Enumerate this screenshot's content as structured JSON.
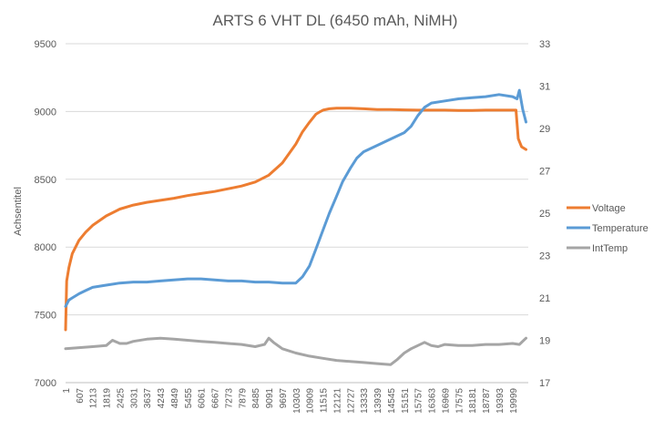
{
  "chart_data": {
    "type": "line",
    "title": "ARTS 6 VHT DL (6450 mAh, NiMH)",
    "xlabel": "",
    "ylabel": "Achsentitel",
    "y2label": "",
    "ylim": [
      7000,
      9500
    ],
    "y2lim": [
      17,
      33
    ],
    "yticks": [
      7000,
      7500,
      8000,
      8500,
      9000,
      9500
    ],
    "y2ticks": [
      17,
      19,
      21,
      23,
      25,
      27,
      29,
      31,
      33
    ],
    "x_range": [
      1,
      20700
    ],
    "x_ticks": [
      "1",
      "607",
      "1213",
      "1819",
      "2425",
      "3031",
      "3637",
      "4243",
      "4849",
      "5455",
      "6061",
      "6667",
      "7273",
      "7879",
      "8485",
      "9091",
      "9697",
      "10303",
      "10909",
      "11515",
      "12121",
      "12727",
      "13333",
      "13939",
      "14545",
      "15151",
      "15757",
      "16363",
      "16969",
      "17575",
      "18181",
      "18787",
      "19393",
      "19999"
    ],
    "x_tick_values": [
      1,
      607,
      1213,
      1819,
      2425,
      3031,
      3637,
      4243,
      4849,
      5455,
      6061,
      6667,
      7273,
      7879,
      8485,
      9091,
      9697,
      10303,
      10909,
      11515,
      12121,
      12727,
      13333,
      13939,
      14545,
      15151,
      15757,
      16363,
      16969,
      17575,
      18181,
      18787,
      19393,
      19999
    ],
    "grid": "horizontal",
    "legend_position": "right",
    "series": [
      {
        "name": "Voltage",
        "axis": "left",
        "color": "#ed7d31",
        "x": [
          1,
          50,
          150,
          300,
          600,
          900,
          1213,
          1819,
          2425,
          3031,
          3637,
          4243,
          4849,
          5455,
          6061,
          6667,
          7273,
          7879,
          8485,
          9091,
          9697,
          10000,
          10303,
          10600,
          10909,
          11200,
          11400,
          11515,
          11800,
          12121,
          12727,
          13333,
          13939,
          14545,
          15151,
          15757,
          16363,
          16969,
          17575,
          18181,
          18787,
          19393,
          19999,
          20150,
          20250,
          20400,
          20600
        ],
        "y": [
          7390,
          7750,
          7850,
          7950,
          8050,
          8110,
          8160,
          8230,
          8280,
          8310,
          8330,
          8345,
          8360,
          8380,
          8395,
          8410,
          8430,
          8450,
          8480,
          8530,
          8620,
          8690,
          8760,
          8850,
          8920,
          8980,
          9000,
          9010,
          9020,
          9025,
          9025,
          9020,
          9015,
          9015,
          9012,
          9010,
          9010,
          9010,
          9008,
          9008,
          9010,
          9010,
          9010,
          9010,
          8800,
          8740,
          8720
        ]
      },
      {
        "name": "Temperature",
        "axis": "right",
        "color": "#5b9bd5",
        "x": [
          1,
          150,
          300,
          607,
          900,
          1213,
          1819,
          2425,
          3031,
          3637,
          4243,
          4849,
          5455,
          6061,
          6667,
          7273,
          7879,
          8485,
          9091,
          9697,
          10000,
          10303,
          10600,
          10909,
          11200,
          11515,
          11800,
          12121,
          12400,
          12727,
          13030,
          13333,
          13939,
          14545,
          15151,
          15454,
          15757,
          16060,
          16363,
          16969,
          17575,
          18181,
          18787,
          19393,
          19999,
          20200,
          20300,
          20450,
          20600
        ],
        "y": [
          20.6,
          20.9,
          21.0,
          21.2,
          21.35,
          21.5,
          21.6,
          21.7,
          21.75,
          21.75,
          21.8,
          21.85,
          21.9,
          21.9,
          21.85,
          21.8,
          21.8,
          21.75,
          21.75,
          21.7,
          21.7,
          21.7,
          22.0,
          22.5,
          23.3,
          24.2,
          25.0,
          25.8,
          26.5,
          27.1,
          27.6,
          27.9,
          28.2,
          28.5,
          28.8,
          29.1,
          29.6,
          30.0,
          30.2,
          30.3,
          30.4,
          30.45,
          30.5,
          30.6,
          30.5,
          30.4,
          30.8,
          29.9,
          29.3
        ]
      },
      {
        "name": "IntTemp",
        "axis": "right",
        "color": "#a5a5a5",
        "x": [
          1,
          607,
          1213,
          1819,
          2100,
          2425,
          2730,
          3031,
          3637,
          4243,
          4849,
          5455,
          6061,
          6667,
          7273,
          7879,
          8485,
          8900,
          9091,
          9300,
          9697,
          10303,
          10909,
          11515,
          12121,
          12727,
          13333,
          13939,
          14545,
          14850,
          15151,
          15454,
          15757,
          16060,
          16363,
          16666,
          16969,
          17575,
          18181,
          18787,
          19393,
          19999,
          20300,
          20600
        ],
        "y": [
          18.6,
          18.65,
          18.7,
          18.75,
          19.0,
          18.85,
          18.85,
          18.95,
          19.05,
          19.1,
          19.05,
          19.0,
          18.95,
          18.9,
          18.85,
          18.8,
          18.7,
          18.8,
          19.1,
          18.9,
          18.6,
          18.4,
          18.25,
          18.15,
          18.05,
          18.0,
          17.95,
          17.9,
          17.85,
          18.1,
          18.4,
          18.6,
          18.75,
          18.9,
          18.75,
          18.7,
          18.8,
          18.75,
          18.75,
          18.8,
          18.8,
          18.85,
          18.8,
          19.1
        ]
      }
    ]
  }
}
